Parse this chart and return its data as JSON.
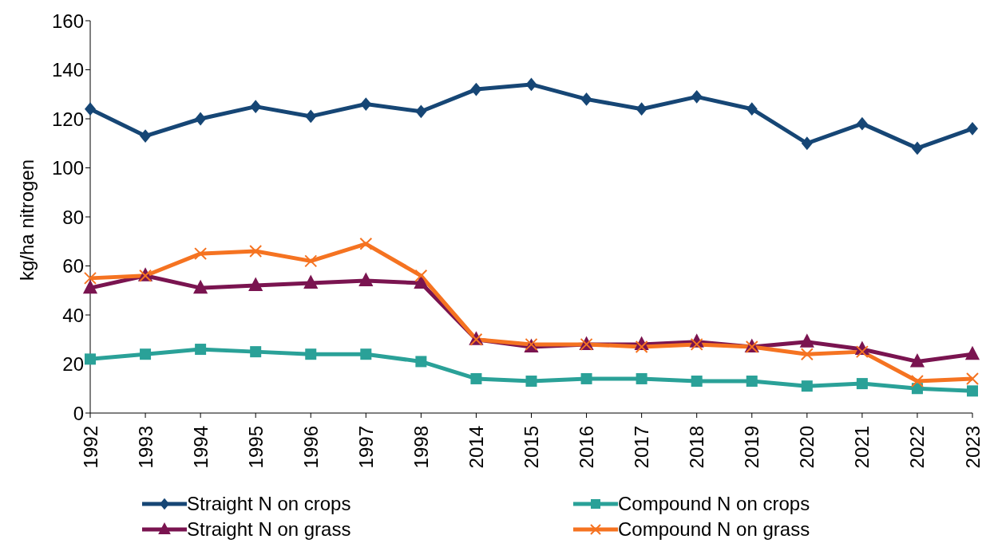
{
  "chart_data": {
    "type": "line",
    "ylabel": "kg/ha nitrogen",
    "categories": [
      "1992",
      "1993",
      "1994",
      "1995",
      "1996",
      "1997",
      "1998",
      "2014",
      "2015",
      "2016",
      "2017",
      "2018",
      "2019",
      "2020",
      "2021",
      "2022",
      "2023"
    ],
    "ylim": [
      0,
      160
    ],
    "yticks": [
      0,
      20,
      40,
      60,
      80,
      100,
      120,
      140,
      160
    ],
    "grid": false,
    "legend": "bottom",
    "series": [
      {
        "name": "Straight N on crops",
        "color": "#164675",
        "marker": "diamond",
        "values": [
          124,
          113,
          120,
          125,
          121,
          126,
          123,
          132,
          134,
          128,
          124,
          129,
          124,
          110,
          118,
          108,
          116
        ]
      },
      {
        "name": "Compound N on crops",
        "color": "#2aa198",
        "marker": "square",
        "values": [
          22,
          24,
          26,
          25,
          24,
          24,
          21,
          14,
          13,
          14,
          14,
          13,
          13,
          11,
          12,
          10,
          9
        ]
      },
      {
        "name": "Straight N on grass",
        "color": "#7a1450",
        "marker": "triangle",
        "values": [
          51,
          56,
          51,
          52,
          53,
          54,
          53,
          30,
          27,
          28,
          28,
          29,
          27,
          29,
          26,
          21,
          24
        ]
      },
      {
        "name": "Compound N on grass",
        "color": "#f57321",
        "marker": "cross",
        "values": [
          55,
          56,
          65,
          66,
          62,
          69,
          56,
          30,
          28,
          28,
          27,
          28,
          27,
          24,
          25,
          13,
          14
        ]
      }
    ]
  }
}
